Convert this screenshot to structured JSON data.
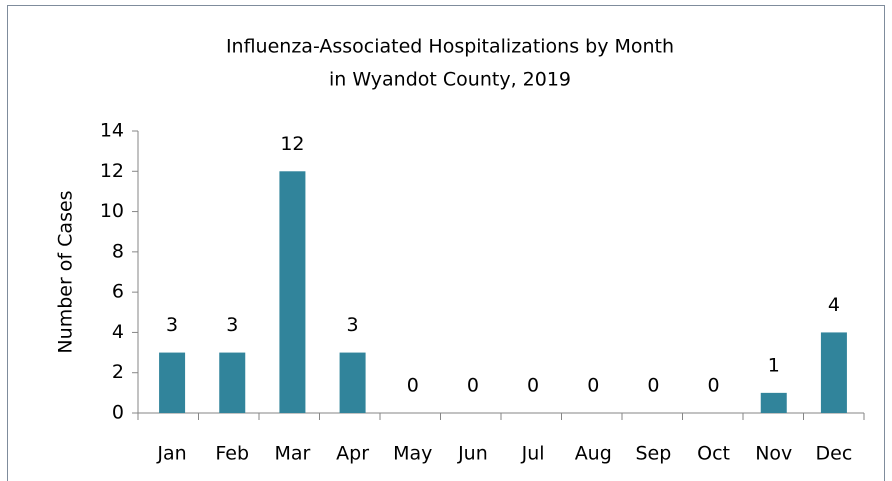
{
  "chart_data": {
    "type": "bar",
    "title": [
      "Influenza-Associated Hospitalizations by Month",
      "in Wyandot County, 2019"
    ],
    "y_axis_label": "Number of Cases",
    "categories": [
      "Jan",
      "Feb",
      "Mar",
      "Apr",
      "May",
      "Jun",
      "Jul",
      "Aug",
      "Sep",
      "Oct",
      "Nov",
      "Dec"
    ],
    "values": [
      3,
      3,
      12,
      3,
      0,
      0,
      0,
      0,
      0,
      0,
      1,
      4
    ],
    "color": "#31849b",
    "ylim": [
      0,
      14
    ],
    "yticks": [
      0,
      2,
      4,
      6,
      8,
      10,
      12,
      14
    ],
    "grid": false
  }
}
